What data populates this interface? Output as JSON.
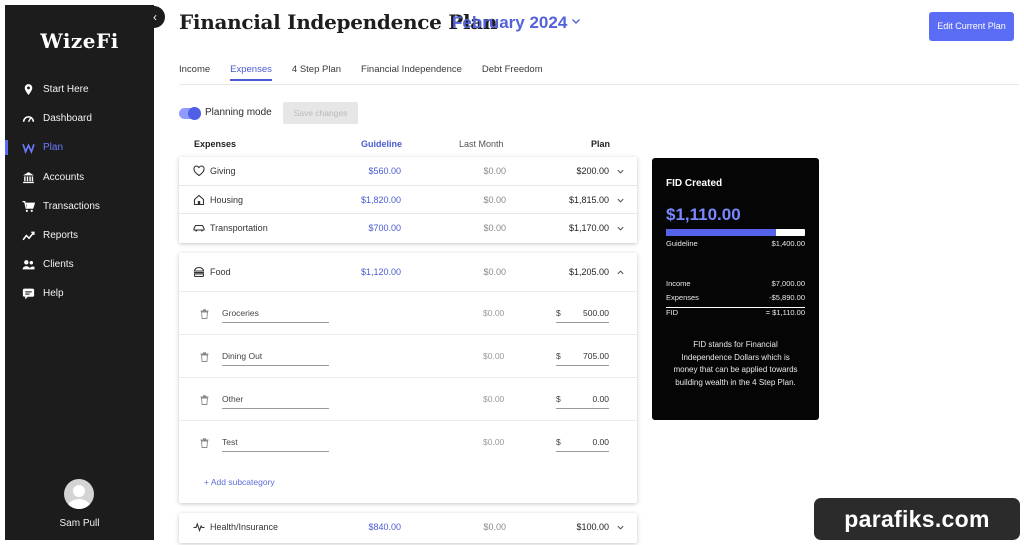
{
  "sidebar": {
    "logo": "WizeFi",
    "items": [
      {
        "label": "Start Here",
        "icon": "location-pin-icon"
      },
      {
        "label": "Dashboard",
        "icon": "gauge-icon"
      },
      {
        "label": "Plan",
        "icon": "wizefi-w-icon",
        "active": true
      },
      {
        "label": "Accounts",
        "icon": "bank-icon"
      },
      {
        "label": "Transactions",
        "icon": "cart-icon"
      },
      {
        "label": "Reports",
        "icon": "trend-chart-icon"
      },
      {
        "label": "Clients",
        "icon": "people-icon"
      },
      {
        "label": "Help",
        "icon": "chat-bubble-icon"
      }
    ],
    "user": "Sam Pull",
    "collapse_glyph": "‹"
  },
  "header": {
    "title": "Financial Independence Plan",
    "period": "February 2024",
    "edit_button": "Edit Current Plan"
  },
  "tabs": [
    {
      "label": "Income"
    },
    {
      "label": "Expenses",
      "active": true
    },
    {
      "label": "4 Step Plan"
    },
    {
      "label": "Financial Independence"
    },
    {
      "label": "Debt Freedom"
    }
  ],
  "planning": {
    "label": "Planning mode",
    "enabled": true,
    "save_button": "Save changes"
  },
  "table": {
    "headers": {
      "expenses": "Expenses",
      "guideline": "Guideline",
      "last_month": "Last Month",
      "plan": "Plan"
    },
    "rows": [
      {
        "name": "Giving",
        "icon": "heart-icon",
        "guideline": "$560.00",
        "last_month": "$0.00",
        "plan": "$200.00"
      },
      {
        "name": "Housing",
        "icon": "house-icon",
        "guideline": "$1,820.00",
        "last_month": "$0.00",
        "plan": "$1,815.00"
      },
      {
        "name": "Transportation",
        "icon": "car-icon",
        "guideline": "$700.00",
        "last_month": "$0.00",
        "plan": "$1,170.00"
      },
      {
        "name": "Food",
        "icon": "burger-icon",
        "guideline": "$1,120.00",
        "last_month": "$0.00",
        "plan": "$1,205.00",
        "expanded": true
      },
      {
        "name": "Health/Insurance",
        "icon": "heartbeat-icon",
        "guideline": "$840.00",
        "last_month": "$0.00",
        "plan": "$100.00"
      }
    ],
    "food_subcategories": [
      {
        "name": "Groceries",
        "last_month": "$0.00",
        "currency": "$",
        "plan": "500.00"
      },
      {
        "name": "Dining Out",
        "last_month": "$0.00",
        "currency": "$",
        "plan": "705.00"
      },
      {
        "name": "Other",
        "last_month": "$0.00",
        "currency": "$",
        "plan": "0.00"
      },
      {
        "name": "Test",
        "last_month": "$0.00",
        "currency": "$",
        "plan": "0.00"
      }
    ],
    "add_subcategory": "+ Add subcategory"
  },
  "fid": {
    "title": "FID Created",
    "amount": "$1,110.00",
    "progress": 0.793,
    "guideline_label": "Guideline",
    "guideline_value": "$1,400.00",
    "income_label": "Income",
    "income_value": "$7,000.00",
    "expenses_label": "Expenses",
    "expenses_value": "-$5,890.00",
    "fid_label": "FID",
    "fid_value": "= $1,110.00",
    "note": "FID stands for Financial Independence Dollars which is money that can be applied towards building wealth in the 4 Step Plan."
  },
  "watermark": "parafiks.com",
  "colors": {
    "accent": "#5b6cf5",
    "sidebar": "#1c1c1c",
    "fid_panel": "#050505",
    "guideline_text": "#4b5ad0"
  }
}
